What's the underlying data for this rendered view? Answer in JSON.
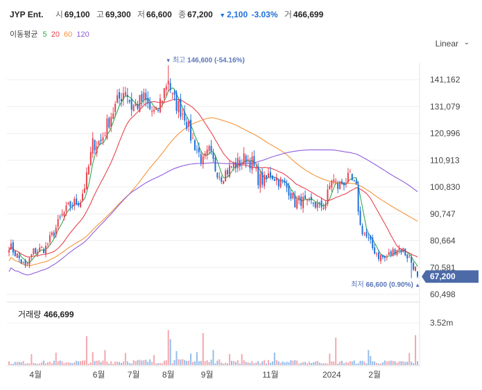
{
  "header": {
    "name": "JYP Ent.",
    "open_label": "시",
    "open": "69,100",
    "high_label": "고",
    "high": "69,300",
    "low_label": "저",
    "low": "66,600",
    "close_label": "종",
    "close": "67,200",
    "change": "2,100",
    "change_pct": "-3.03%",
    "volume_label": "거",
    "volume": "466,699",
    "change_color": "#1e6fd9"
  },
  "moving_average": {
    "label": "이동평균",
    "periods": [
      {
        "period": "5",
        "color": "#2fa84f"
      },
      {
        "period": "20",
        "color": "#e8414f"
      },
      {
        "period": "60",
        "color": "#f5943b"
      },
      {
        "period": "120",
        "color": "#8f5bdb"
      }
    ]
  },
  "scale_mode": "Linear",
  "chart_data": {
    "type": "candlestick",
    "y_ticks": [
      "141,162",
      "131,079",
      "120,996",
      "110,913",
      "100,830",
      "90,747",
      "80,664",
      "70,581",
      "60,498"
    ],
    "y_tick_values": [
      141162,
      131079,
      120996,
      110913,
      100830,
      90747,
      80664,
      70581,
      60498
    ],
    "ylim": [
      60498,
      146600
    ],
    "x_ticks": [
      "4월",
      "6월",
      "7월",
      "8월",
      "9월",
      "11월",
      "2024",
      "2월"
    ],
    "x_tick_positions": [
      13,
      44,
      61,
      78,
      97,
      128,
      158,
      179
    ],
    "last_price_label": "67,200",
    "last_price": 67200,
    "max_annotation": {
      "label": "최고",
      "value": "146,600",
      "pct": "(-54.16%)",
      "index": 78,
      "price": 146600
    },
    "min_annotation": {
      "label": "최저",
      "value": "66,600",
      "pct": "(0.90%)",
      "index": 197,
      "price": 66600
    },
    "volume_label": "거래량",
    "volume_value": "466,699",
    "volume_tick": "3.52m",
    "volume_max": 3520000,
    "up_color": "#e8414f",
    "down_color": "#1e6fd9",
    "close_anchors": [
      [
        0,
        79000
      ],
      [
        5,
        74000
      ],
      [
        8,
        70500
      ],
      [
        12,
        76500
      ],
      [
        18,
        78000
      ],
      [
        22,
        84000
      ],
      [
        26,
        90000
      ],
      [
        30,
        94000
      ],
      [
        35,
        96000
      ],
      [
        38,
        104000
      ],
      [
        41,
        117000
      ],
      [
        45,
        118000
      ],
      [
        48,
        124000
      ],
      [
        50,
        128000
      ],
      [
        54,
        134000
      ],
      [
        57,
        138000
      ],
      [
        60,
        131000
      ],
      [
        63,
        132000
      ],
      [
        66,
        134000
      ],
      [
        69,
        130000
      ],
      [
        72,
        128000
      ],
      [
        75,
        135000
      ],
      [
        78,
        142000
      ],
      [
        80,
        134000
      ],
      [
        83,
        131000
      ],
      [
        86,
        128000
      ],
      [
        89,
        120000
      ],
      [
        92,
        115000
      ],
      [
        95,
        110000
      ],
      [
        98,
        114000
      ],
      [
        101,
        108000
      ],
      [
        104,
        105000
      ],
      [
        107,
        107000
      ],
      [
        110,
        109000
      ],
      [
        113,
        110000
      ],
      [
        116,
        112000
      ],
      [
        119,
        110000
      ],
      [
        122,
        104000
      ],
      [
        125,
        103000
      ],
      [
        128,
        106000
      ],
      [
        131,
        104000
      ],
      [
        134,
        102000
      ],
      [
        137,
        100000
      ],
      [
        140,
        95000
      ],
      [
        143,
        96000
      ],
      [
        146,
        94000
      ],
      [
        149,
        95000
      ],
      [
        152,
        93000
      ],
      [
        155,
        95000
      ],
      [
        158,
        104000
      ],
      [
        161,
        101000
      ],
      [
        164,
        103000
      ],
      [
        167,
        104000
      ],
      [
        170,
        100000
      ],
      [
        172,
        86000
      ],
      [
        175,
        82000
      ],
      [
        178,
        78000
      ],
      [
        181,
        75000
      ],
      [
        184,
        74000
      ],
      [
        187,
        76000
      ],
      [
        190,
        78000
      ],
      [
        193,
        77000
      ],
      [
        196,
        74000
      ],
      [
        199,
        70000
      ],
      [
        200,
        67200
      ]
    ],
    "volume_anchors": [
      [
        0,
        0.05
      ],
      [
        50,
        0.07
      ],
      [
        80,
        0.08
      ],
      [
        150,
        0.06
      ],
      [
        200,
        0.06
      ]
    ],
    "volume_spikes": [
      [
        11,
        0.22
      ],
      [
        23,
        0.25
      ],
      [
        38,
        0.58
      ],
      [
        41,
        0.26
      ],
      [
        47,
        0.3
      ],
      [
        57,
        0.24
      ],
      [
        71,
        0.2
      ],
      [
        78,
        0.7
      ],
      [
        79,
        0.52
      ],
      [
        82,
        0.28
      ],
      [
        89,
        0.23
      ],
      [
        92,
        0.26
      ],
      [
        95,
        0.64
      ],
      [
        100,
        0.3
      ],
      [
        108,
        0.22
      ],
      [
        114,
        0.22
      ],
      [
        130,
        0.25
      ],
      [
        157,
        0.23
      ],
      [
        160,
        0.55
      ],
      [
        176,
        0.3
      ],
      [
        177,
        0.18
      ],
      [
        199,
        0.6
      ],
      [
        196,
        0.24
      ]
    ]
  }
}
